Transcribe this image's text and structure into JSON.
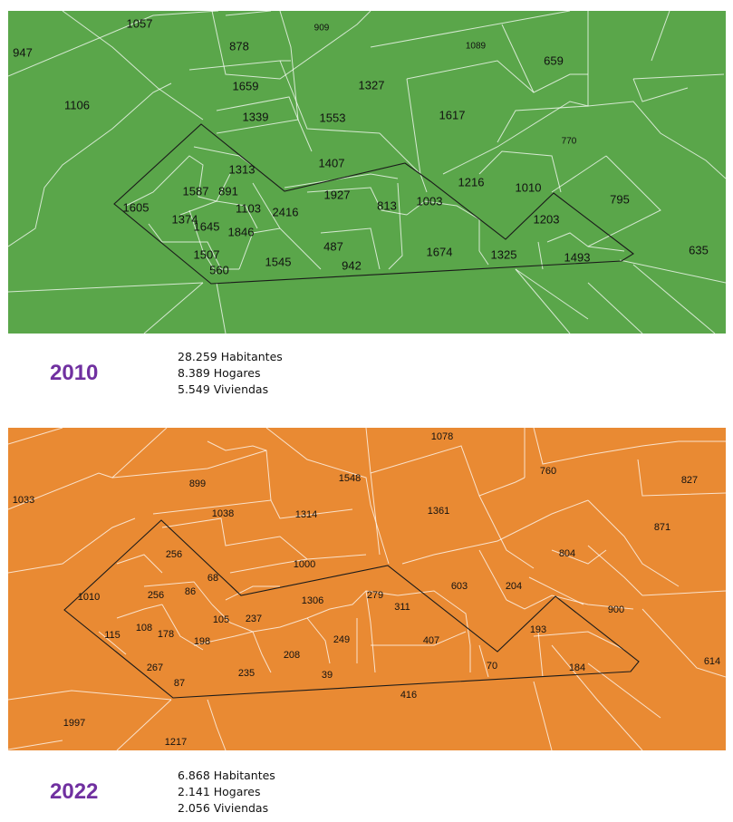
{
  "colors": {
    "map_2010": "#5aa64a",
    "map_2022": "#e98a33",
    "year_text": "#7030a0"
  },
  "panels": [
    {
      "year": "2010",
      "stats": [
        "28.259 Habitantes",
        "8.389 Hogares",
        "5.549 Viviendas"
      ],
      "labels": [
        "1057",
        "909",
        "947",
        "878",
        "1089",
        "659",
        "1106",
        "1659",
        "1327",
        "1339",
        "1553",
        "1617",
        "770",
        "1313",
        "1407",
        "1587",
        "891",
        "1927",
        "1216",
        "1010",
        "795",
        "1605",
        "1103",
        "2416",
        "813",
        "1003",
        "1374",
        "1645",
        "1203",
        "1846",
        "635",
        "487",
        "1674",
        "1325",
        "1493",
        "1507",
        "1545",
        "942",
        "560"
      ]
    },
    {
      "year": "2022",
      "stats": [
        "6.868 Habitantes",
        "2.141 Hogares",
        "2.056 Viviendas"
      ],
      "labels": [
        "1078",
        "760",
        "827",
        "1548",
        "1033",
        "899",
        "1361",
        "1038",
        "1314",
        "871",
        "804",
        "256",
        "1000",
        "68",
        "1010",
        "256",
        "86",
        "603",
        "204",
        "1306",
        "279",
        "311",
        "900",
        "115",
        "108",
        "178",
        "105",
        "237",
        "193",
        "198",
        "208",
        "249",
        "407",
        "614",
        "267",
        "70",
        "184",
        "87",
        "235",
        "39",
        "416",
        "1997",
        "1217"
      ]
    }
  ]
}
